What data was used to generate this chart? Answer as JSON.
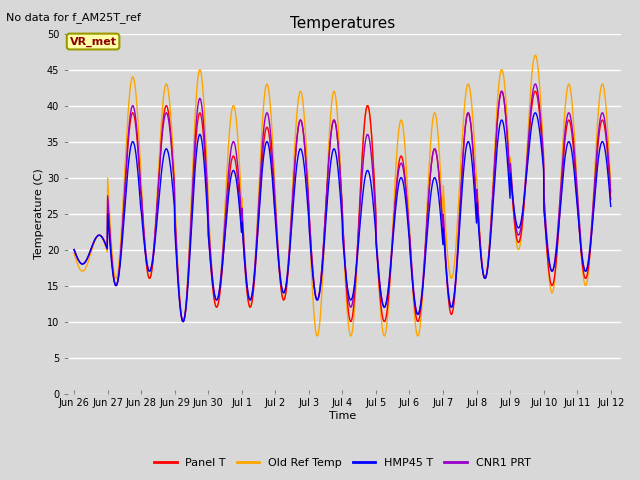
{
  "title": "Temperatures",
  "xlabel": "Time",
  "ylabel": "Temperature (C)",
  "note": "No data for f_AM25T_ref",
  "annotation": "VR_met",
  "ylim": [
    0,
    50
  ],
  "yticks": [
    0,
    5,
    10,
    15,
    20,
    25,
    30,
    35,
    40,
    45,
    50
  ],
  "series_colors": {
    "Panel T": "#FF0000",
    "Old Ref Temp": "#FFA500",
    "HMP45 T": "#0000FF",
    "CNR1 PRT": "#9900CC"
  },
  "legend_items": [
    "Panel T",
    "Old Ref Temp",
    "HMP45 T",
    "CNR1 PRT"
  ],
  "x_tick_labels": [
    "Jun\n26",
    "Jun\n27",
    "Jun\n28",
    "Jun\n29",
    "Jun\n30",
    "Jul\n1",
    "Jul\n2",
    "Jul\n3",
    "Jul\n4",
    "Jul\n5",
    "Jul\n6",
    "Jul\n7",
    "Jul\n8",
    "Jul\n9",
    "Jul\n10",
    "Jul\n11",
    "Jul\n12"
  ],
  "x_tick_labels_flat": [
    "Jun 26",
    "Jun 27",
    "Jun 28",
    "Jun 29",
    "Jun 30",
    "Jul 1",
    "Jul 2",
    "Jul 3",
    "Jul 4",
    "Jul 5",
    "Jul 6",
    "Jul 7",
    "Jul 8",
    "Jul 9",
    "Jul 10",
    "Jul 11",
    "Jul 12"
  ],
  "background_color": "#D8D8D8",
  "plot_bg_color": "#D8D8D8",
  "grid_color": "#FFFFFF",
  "title_fontsize": 11,
  "label_fontsize": 8,
  "tick_fontsize": 7,
  "note_fontsize": 8,
  "annot_fontsize": 8
}
